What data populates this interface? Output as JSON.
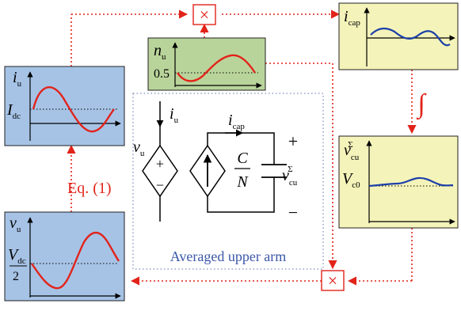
{
  "colors": {
    "blue_panel": "#a6c3e6",
    "yellow_panel": "#f4f3b9",
    "green_panel": "#b9d49a",
    "red": "#e2231a",
    "blue_curve": "#1c3fa8",
    "caption_blue": "#3a57a8"
  },
  "panels": {
    "iu": {
      "var": "i",
      "sub": "u",
      "level_var": "I",
      "level_sub": "dc"
    },
    "nu": {
      "var": "n",
      "sub": "u",
      "level": "0.5"
    },
    "icap": {
      "var": "i",
      "sub": "cap"
    },
    "vcu": {
      "var": "v",
      "sub": "cu",
      "sup": "Σ",
      "level_var": "V",
      "level_sub": "c0"
    },
    "vu": {
      "var": "v",
      "sub": "u",
      "level_var": "V",
      "level_sub": "dc",
      "level_den": "2"
    }
  },
  "blocks": {
    "multiplier_top": "×",
    "multiplier_bottom": "×",
    "integrator": "∫",
    "equation": "Eq. (1)"
  },
  "circuit": {
    "current_in": {
      "var": "i",
      "sub": "u"
    },
    "voltage_src": {
      "var": "v",
      "sub": "u"
    },
    "plus_sign": "+",
    "minus_sign": "−",
    "current_cap": {
      "var": "i",
      "sub": "cap"
    },
    "cap_num": "C",
    "cap_den": "N",
    "cap_voltage": {
      "var": "v",
      "sub": "cu",
      "sup": "Σ"
    },
    "out_plus": "+",
    "out_minus": "−",
    "caption": "Averaged upper arm"
  }
}
